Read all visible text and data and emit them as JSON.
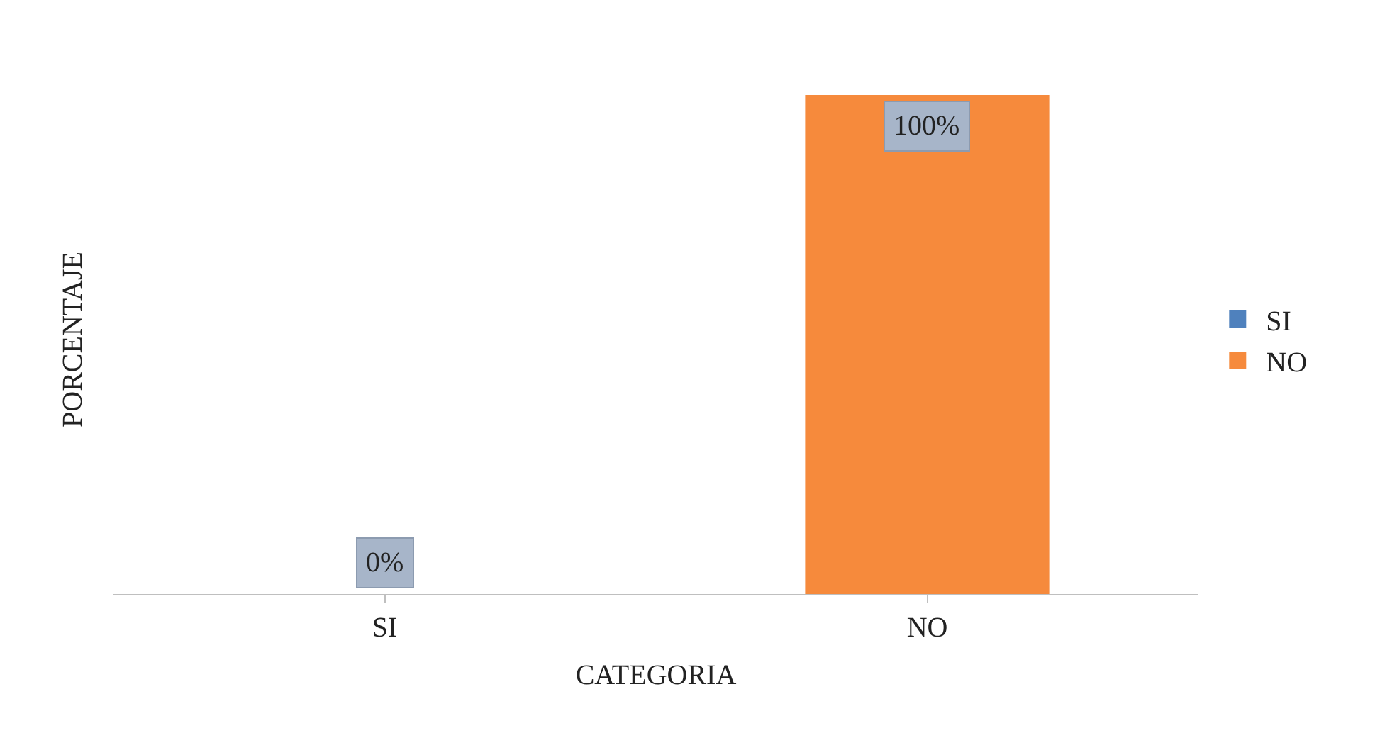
{
  "chart_data": {
    "type": "bar",
    "xlabel": "CATEGORIA",
    "ylabel": "PORCENTAJE",
    "categories": [
      "SI",
      "NO"
    ],
    "tick_labels": "x",
    "legend": "right",
    "series": [
      {
        "name": "SI",
        "color": "#4f81bd",
        "values": [
          0,
          null
        ],
        "value_labels": [
          "0%",
          null
        ]
      },
      {
        "name": "NO",
        "color": "#f68a3c",
        "values": [
          null,
          100
        ],
        "value_labels": [
          null,
          "100%"
        ]
      }
    ]
  }
}
